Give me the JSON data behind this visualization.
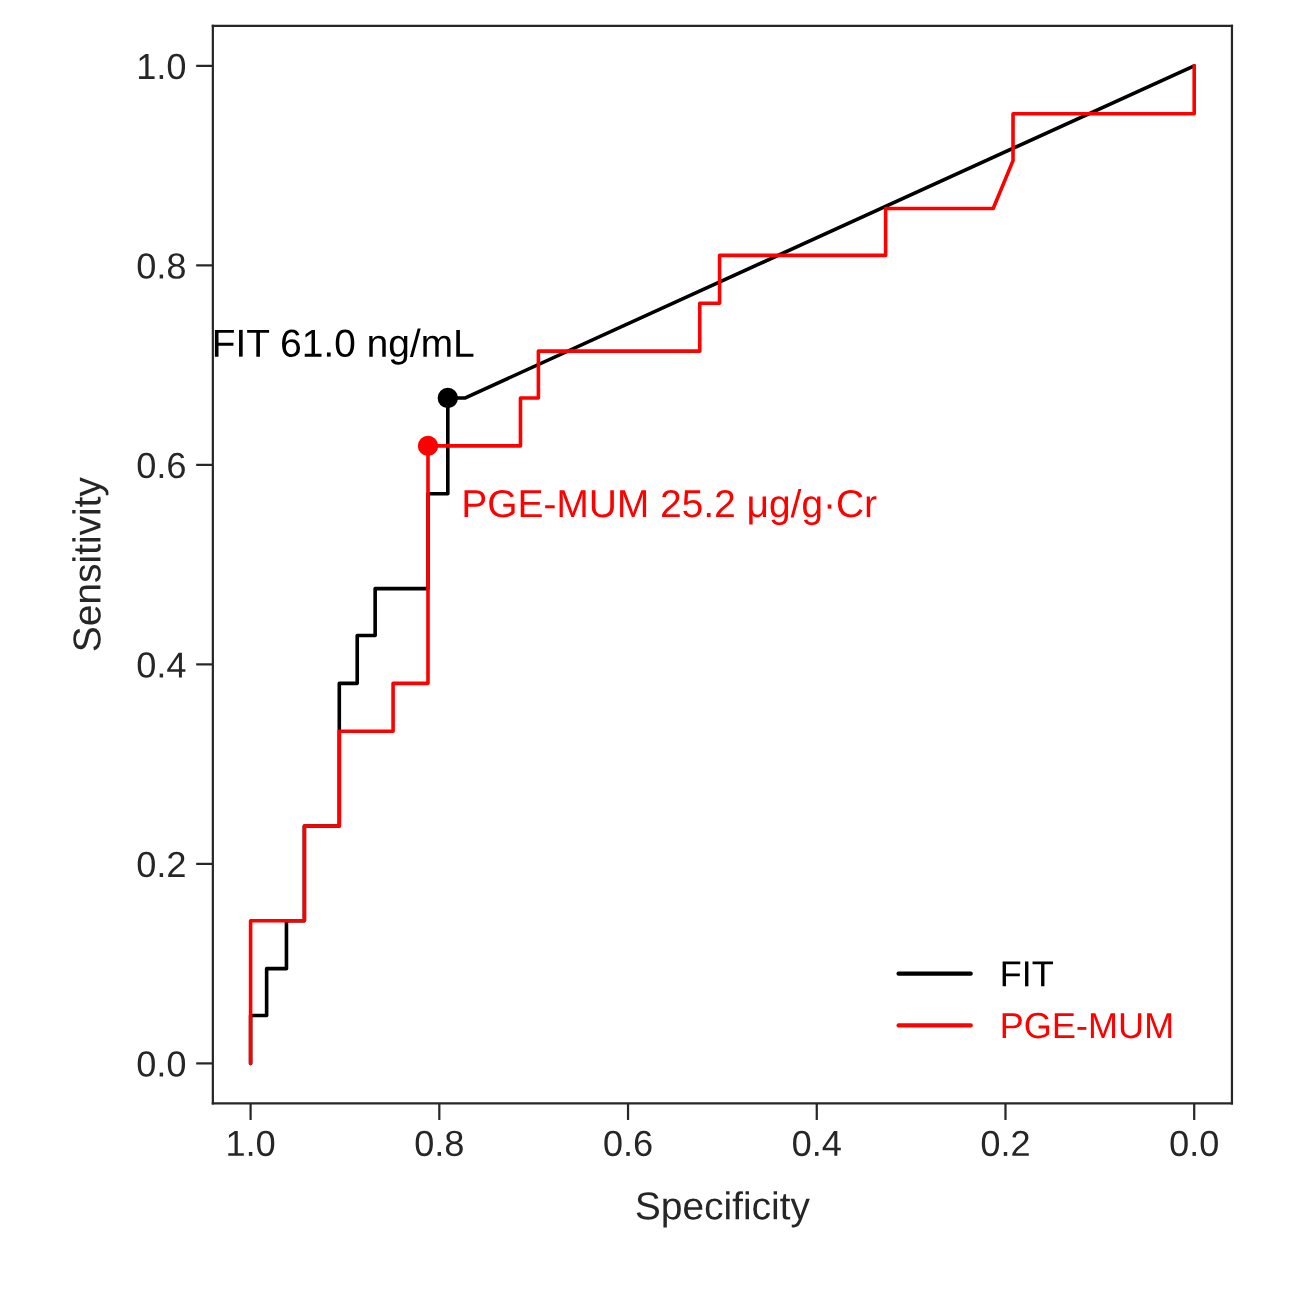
{
  "chart_data": {
    "type": "line",
    "xlabel": "Specificity",
    "ylabel": "Sensitivity",
    "xlim": [
      1.04,
      -0.04
    ],
    "ylim": [
      -0.04,
      1.04
    ],
    "xticks": [
      {
        "value": 1.0,
        "label": "1.0"
      },
      {
        "value": 0.8,
        "label": "0.8"
      },
      {
        "value": 0.6,
        "label": "0.6"
      },
      {
        "value": 0.4,
        "label": "0.4"
      },
      {
        "value": 0.2,
        "label": "0.2"
      },
      {
        "value": 0.0,
        "label": "0.0"
      }
    ],
    "yticks": [
      {
        "value": 0.0,
        "label": "0.0"
      },
      {
        "value": 0.2,
        "label": "0.2"
      },
      {
        "value": 0.4,
        "label": "0.4"
      },
      {
        "value": 0.6,
        "label": "0.6"
      },
      {
        "value": 0.8,
        "label": "0.8"
      },
      {
        "value": 1.0,
        "label": "1.0"
      }
    ],
    "grid": false,
    "legend": "bottom right",
    "marker": "none",
    "line_style": "solid",
    "series": [
      {
        "name": "FIT",
        "color": "#000000",
        "x": [
          1,
          1,
          0.983,
          0.983,
          0.962,
          0.962,
          0.943,
          0.943,
          0.906,
          0.906,
          0.887,
          0.887,
          0.868,
          0.868,
          0.812,
          0.812,
          0.791,
          0.791,
          0.773,
          0
        ],
        "values": [
          0,
          0.048,
          0.048,
          0.095,
          0.095,
          0.143,
          0.143,
          0.238,
          0.238,
          0.381,
          0.381,
          0.429,
          0.429,
          0.476,
          0.476,
          0.571,
          0.571,
          0.667,
          0.667,
          1.0
        ]
      },
      {
        "name": "PGE-MUM",
        "color": "#ff0000",
        "x": [
          1,
          1,
          0.943,
          0.943,
          0.906,
          0.906,
          0.849,
          0.849,
          0.812,
          0.812,
          0.714,
          0.714,
          0.695,
          0.695,
          0.524,
          0.524,
          0.503,
          0.503,
          0.327,
          0.327,
          0.213,
          0.192,
          0.192,
          0,
          0
        ],
        "values": [
          0,
          0.143,
          0.143,
          0.238,
          0.238,
          0.333,
          0.333,
          0.381,
          0.381,
          0.619,
          0.619,
          0.667,
          0.667,
          0.714,
          0.714,
          0.762,
          0.762,
          0.81,
          0.81,
          0.857,
          0.857,
          0.905,
          0.952,
          0.952,
          1.0
        ]
      },
      {
        "type": "scatter",
        "marker": "circle",
        "color": "#000000",
        "x": [
          0.791
        ],
        "values": [
          0.667
        ]
      },
      {
        "type": "scatter",
        "marker": "circle",
        "color": "#ff0000",
        "x": [
          0.812
        ],
        "values": [
          0.619
        ]
      }
    ],
    "annotations": [
      {
        "text": "FIT 61.0 ng/mL",
        "x": 0.791,
        "y": 0.667
      },
      {
        "text": "PGE-MUM 25.2 μg/g·Cr",
        "x": 0.812,
        "y": 0.619
      }
    ]
  }
}
